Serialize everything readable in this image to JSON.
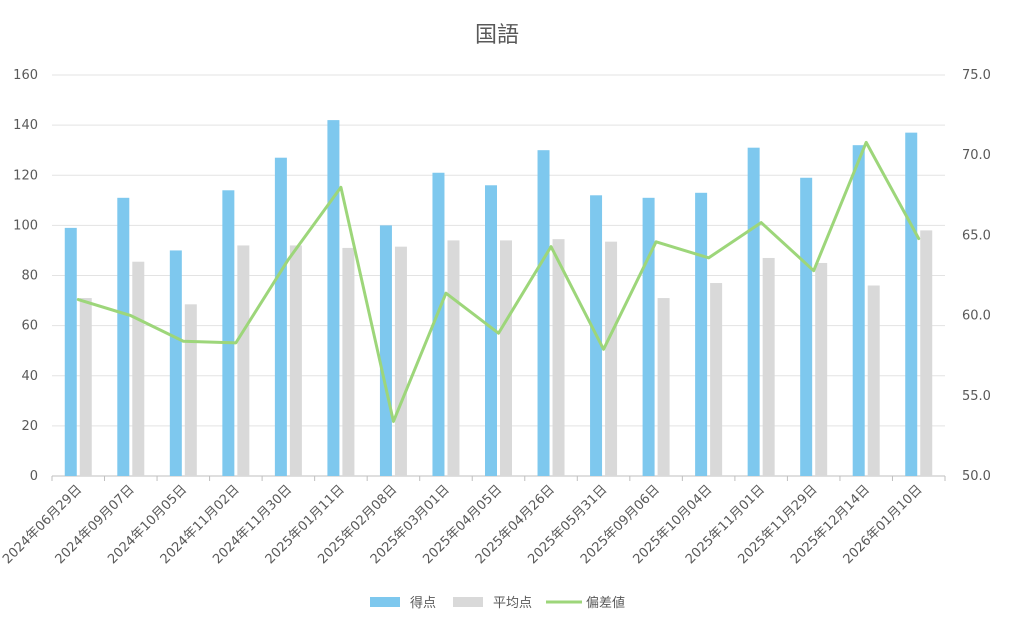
{
  "chart_data": {
    "type": "bar",
    "title": "国語",
    "categories": [
      "2024年06月29日",
      "2024年09月07日",
      "2024年10月05日",
      "2024年11月02日",
      "2024年11月30日",
      "2025年01月11日",
      "2025年02月08日",
      "2025年03月01日",
      "2025年04月05日",
      "2025年04月26日",
      "2025年05月31日",
      "2025年09月06日",
      "2025年10月04日",
      "2025年11月01日",
      "2025年11月29日",
      "2025年12月14日",
      "2026年01月10日"
    ],
    "series": [
      {
        "name": "得点",
        "type": "bar",
        "axis": "left",
        "color": "#7ec8ee",
        "values": [
          99,
          111,
          90,
          114,
          127,
          142,
          100,
          121,
          116,
          130,
          112,
          111,
          113,
          131,
          119,
          132,
          137
        ]
      },
      {
        "name": "平均点",
        "type": "bar",
        "axis": "left",
        "color": "#d9d9d9",
        "values": [
          71,
          85.5,
          68.5,
          92,
          92,
          91,
          91.5,
          94,
          94,
          94.5,
          93.5,
          71,
          77,
          87,
          85,
          76,
          98
        ]
      },
      {
        "name": "偏差値",
        "type": "line",
        "axis": "right",
        "color": "#9dd67a",
        "values": [
          61.0,
          60.0,
          58.4,
          58.3,
          63.5,
          68.0,
          53.4,
          61.4,
          58.9,
          64.3,
          57.9,
          64.6,
          63.6,
          65.8,
          62.8,
          70.8,
          64.8
        ]
      }
    ],
    "left_axis": {
      "min": 0,
      "max": 160,
      "step": 20,
      "tick_labels": [
        "0",
        "20",
        "40",
        "60",
        "80",
        "100",
        "120",
        "140",
        "160"
      ]
    },
    "right_axis": {
      "min": 50,
      "max": 75,
      "step": 5,
      "tick_labels": [
        "50.0",
        "55.0",
        "60.0",
        "65.0",
        "70.0",
        "75.0"
      ]
    },
    "grid": true,
    "legend_position": "bottom"
  }
}
